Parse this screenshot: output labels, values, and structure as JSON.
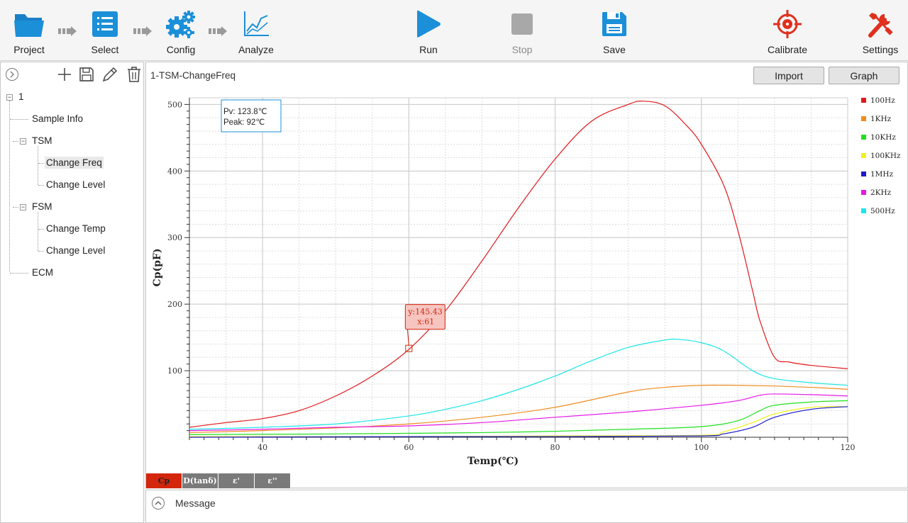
{
  "toolbar": {
    "project": "Project",
    "select": "Select",
    "config": "Config",
    "analyze": "Analyze",
    "run": "Run",
    "stop": "Stop",
    "save": "Save",
    "calibrate": "Calibrate",
    "settings": "Settings"
  },
  "tree": {
    "root": "1",
    "sample_info": "Sample Info",
    "tsm": "TSM",
    "tsm_change_freq": "Change Freq",
    "tsm_change_level": "Change Level",
    "fsm": "FSM",
    "fsm_change_temp": "Change Temp",
    "fsm_change_level": "Change Level",
    "ecm": "ECM"
  },
  "main": {
    "title": "1-TSM-ChangeFreq",
    "import_label": "Import",
    "graph_label": "Graph"
  },
  "info_box": {
    "pv": "Pv: 123.8℃",
    "peak": "Peak: 92℃"
  },
  "tooltip": {
    "y": "y:145.43",
    "x": "x:61"
  },
  "tabs": [
    "Cp",
    "D(tanδ)",
    "ε'",
    "ε''"
  ],
  "message": {
    "label": "Message"
  },
  "colors": {
    "accent": "#1b8fd8",
    "active_tab": "#d3260d"
  },
  "chart_data": {
    "type": "line",
    "xlabel": "Temp(℃)",
    "ylabel": "Cp(pF)",
    "xlim": [
      30,
      120
    ],
    "ylim": [
      0,
      510
    ],
    "xticks": [
      40,
      60,
      80,
      100,
      120
    ],
    "yticks": [
      100,
      200,
      300,
      400,
      500
    ],
    "grid": true,
    "legend_position": "right",
    "series": [
      {
        "name": "100Hz",
        "color": "#e0191c",
        "x": [
          30,
          35,
          40,
          45,
          50,
          55,
          60,
          65,
          70,
          75,
          80,
          85,
          90,
          92,
          95,
          98,
          100,
          103,
          105,
          107,
          108,
          110,
          112,
          115,
          120
        ],
        "y": [
          15,
          22,
          28,
          40,
          62,
          92,
          132,
          190,
          265,
          345,
          418,
          475,
          500,
          505,
          498,
          468,
          440,
          380,
          310,
          220,
          175,
          120,
          113,
          108,
          103
        ]
      },
      {
        "name": "1KHz",
        "color": "#f08c1e",
        "x": [
          30,
          40,
          50,
          60,
          70,
          80,
          90,
          95,
          100,
          105,
          110,
          115,
          120
        ],
        "y": [
          7,
          10,
          14,
          20,
          30,
          45,
          68,
          75,
          78,
          78,
          77,
          75,
          72
        ]
      },
      {
        "name": "10KHz",
        "color": "#1ee01e",
        "x": [
          30,
          50,
          70,
          80,
          90,
          100,
          105,
          108,
          110,
          115,
          120
        ],
        "y": [
          4,
          5,
          7,
          9,
          12,
          16,
          25,
          40,
          48,
          53,
          55
        ]
      },
      {
        "name": "100KHz",
        "color": "#f0f01e",
        "x": [
          30,
          60,
          80,
          100,
          103,
          107,
          110,
          115,
          120
        ],
        "y": [
          1,
          1,
          2,
          3,
          8,
          22,
          35,
          45,
          46
        ]
      },
      {
        "name": "1MHz",
        "color": "#1a1acc",
        "x": [
          30,
          60,
          80,
          100,
          103,
          107,
          110,
          115,
          120
        ],
        "y": [
          0,
          1,
          1,
          2,
          5,
          15,
          30,
          42,
          46
        ]
      },
      {
        "name": "2KHz",
        "color": "#e619e6",
        "x": [
          30,
          40,
          50,
          60,
          70,
          80,
          90,
          100,
          105,
          108,
          110,
          115,
          120
        ],
        "y": [
          10,
          12,
          15,
          17,
          22,
          30,
          38,
          48,
          55,
          63,
          65,
          64,
          62
        ]
      },
      {
        "name": "500Hz",
        "color": "#1ee6e6",
        "x": [
          30,
          40,
          50,
          60,
          65,
          70,
          75,
          80,
          85,
          90,
          95,
          97,
          100,
          103,
          107,
          110,
          115,
          120
        ],
        "y": [
          12,
          15,
          20,
          32,
          42,
          55,
          72,
          92,
          115,
          135,
          146,
          147,
          142,
          130,
          100,
          88,
          82,
          78
        ]
      }
    ],
    "marker": {
      "x": 61,
      "y": 145.43
    }
  }
}
